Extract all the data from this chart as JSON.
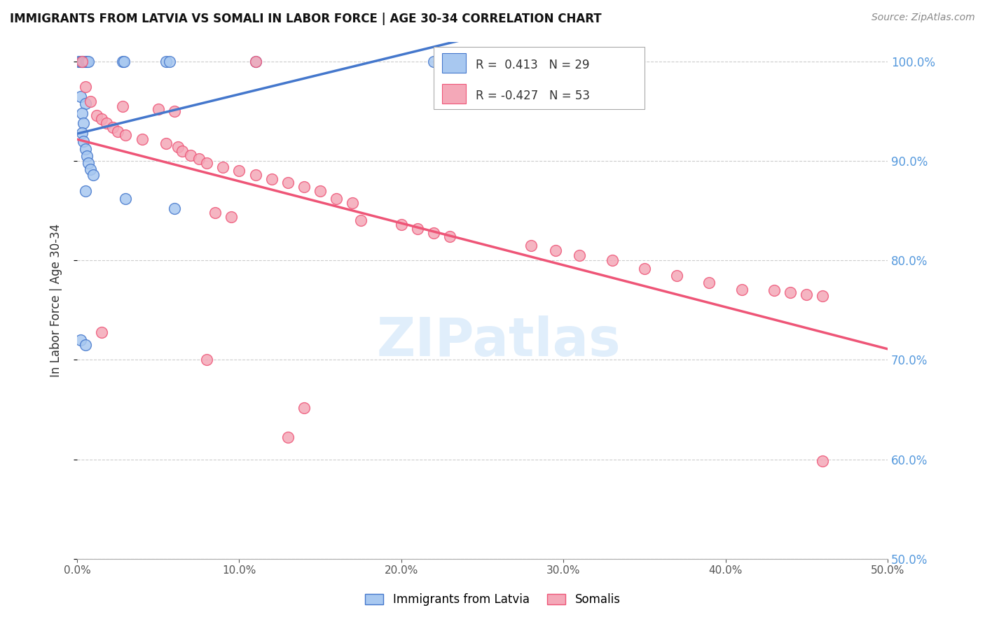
{
  "title": "IMMIGRANTS FROM LATVIA VS SOMALI IN LABOR FORCE | AGE 30-34 CORRELATION CHART",
  "source": "Source: ZipAtlas.com",
  "ylabel": "In Labor Force | Age 30-34",
  "r1": 0.413,
  "n1": 29,
  "r2": -0.427,
  "n2": 53,
  "legend_label1": "Immigrants from Latvia",
  "legend_label2": "Somalis",
  "color_blue": "#A8C8F0",
  "color_pink": "#F4A8B8",
  "color_blue_line": "#4477CC",
  "color_pink_line": "#EE5577",
  "xlim": [
    0.0,
    0.5
  ],
  "ylim": [
    0.5,
    1.02
  ],
  "scatter_blue": [
    [
      0.001,
      1.0
    ],
    [
      0.002,
      1.0
    ],
    [
      0.003,
      1.0
    ],
    [
      0.004,
      1.0
    ],
    [
      0.005,
      1.0
    ],
    [
      0.006,
      1.0
    ],
    [
      0.007,
      1.0
    ],
    [
      0.028,
      1.0
    ],
    [
      0.029,
      1.0
    ],
    [
      0.055,
      1.0
    ],
    [
      0.057,
      1.0
    ],
    [
      0.11,
      1.0
    ],
    [
      0.22,
      1.0
    ],
    [
      0.002,
      0.965
    ],
    [
      0.005,
      0.958
    ],
    [
      0.003,
      0.948
    ],
    [
      0.004,
      0.938
    ],
    [
      0.003,
      0.928
    ],
    [
      0.004,
      0.92
    ],
    [
      0.005,
      0.912
    ],
    [
      0.006,
      0.905
    ],
    [
      0.007,
      0.898
    ],
    [
      0.008,
      0.892
    ],
    [
      0.01,
      0.886
    ],
    [
      0.005,
      0.87
    ],
    [
      0.03,
      0.862
    ],
    [
      0.06,
      0.852
    ],
    [
      0.002,
      0.72
    ],
    [
      0.005,
      0.715
    ]
  ],
  "scatter_pink": [
    [
      0.003,
      1.0
    ],
    [
      0.11,
      1.0
    ],
    [
      0.005,
      0.975
    ],
    [
      0.008,
      0.96
    ],
    [
      0.028,
      0.955
    ],
    [
      0.05,
      0.952
    ],
    [
      0.06,
      0.95
    ],
    [
      0.012,
      0.946
    ],
    [
      0.015,
      0.942
    ],
    [
      0.018,
      0.938
    ],
    [
      0.022,
      0.934
    ],
    [
      0.025,
      0.93
    ],
    [
      0.03,
      0.926
    ],
    [
      0.04,
      0.922
    ],
    [
      0.055,
      0.918
    ],
    [
      0.062,
      0.914
    ],
    [
      0.065,
      0.91
    ],
    [
      0.07,
      0.906
    ],
    [
      0.075,
      0.902
    ],
    [
      0.08,
      0.898
    ],
    [
      0.09,
      0.894
    ],
    [
      0.1,
      0.89
    ],
    [
      0.11,
      0.886
    ],
    [
      0.12,
      0.882
    ],
    [
      0.13,
      0.878
    ],
    [
      0.14,
      0.874
    ],
    [
      0.15,
      0.87
    ],
    [
      0.16,
      0.862
    ],
    [
      0.17,
      0.858
    ],
    [
      0.085,
      0.848
    ],
    [
      0.095,
      0.844
    ],
    [
      0.175,
      0.84
    ],
    [
      0.2,
      0.836
    ],
    [
      0.21,
      0.832
    ],
    [
      0.22,
      0.828
    ],
    [
      0.23,
      0.824
    ],
    [
      0.28,
      0.815
    ],
    [
      0.295,
      0.81
    ],
    [
      0.31,
      0.805
    ],
    [
      0.33,
      0.8
    ],
    [
      0.35,
      0.792
    ],
    [
      0.37,
      0.785
    ],
    [
      0.39,
      0.778
    ],
    [
      0.41,
      0.771
    ],
    [
      0.43,
      0.77
    ],
    [
      0.44,
      0.768
    ],
    [
      0.45,
      0.766
    ],
    [
      0.46,
      0.764
    ],
    [
      0.015,
      0.728
    ],
    [
      0.08,
      0.7
    ],
    [
      0.14,
      0.652
    ],
    [
      0.13,
      0.622
    ],
    [
      0.46,
      0.598
    ]
  ]
}
